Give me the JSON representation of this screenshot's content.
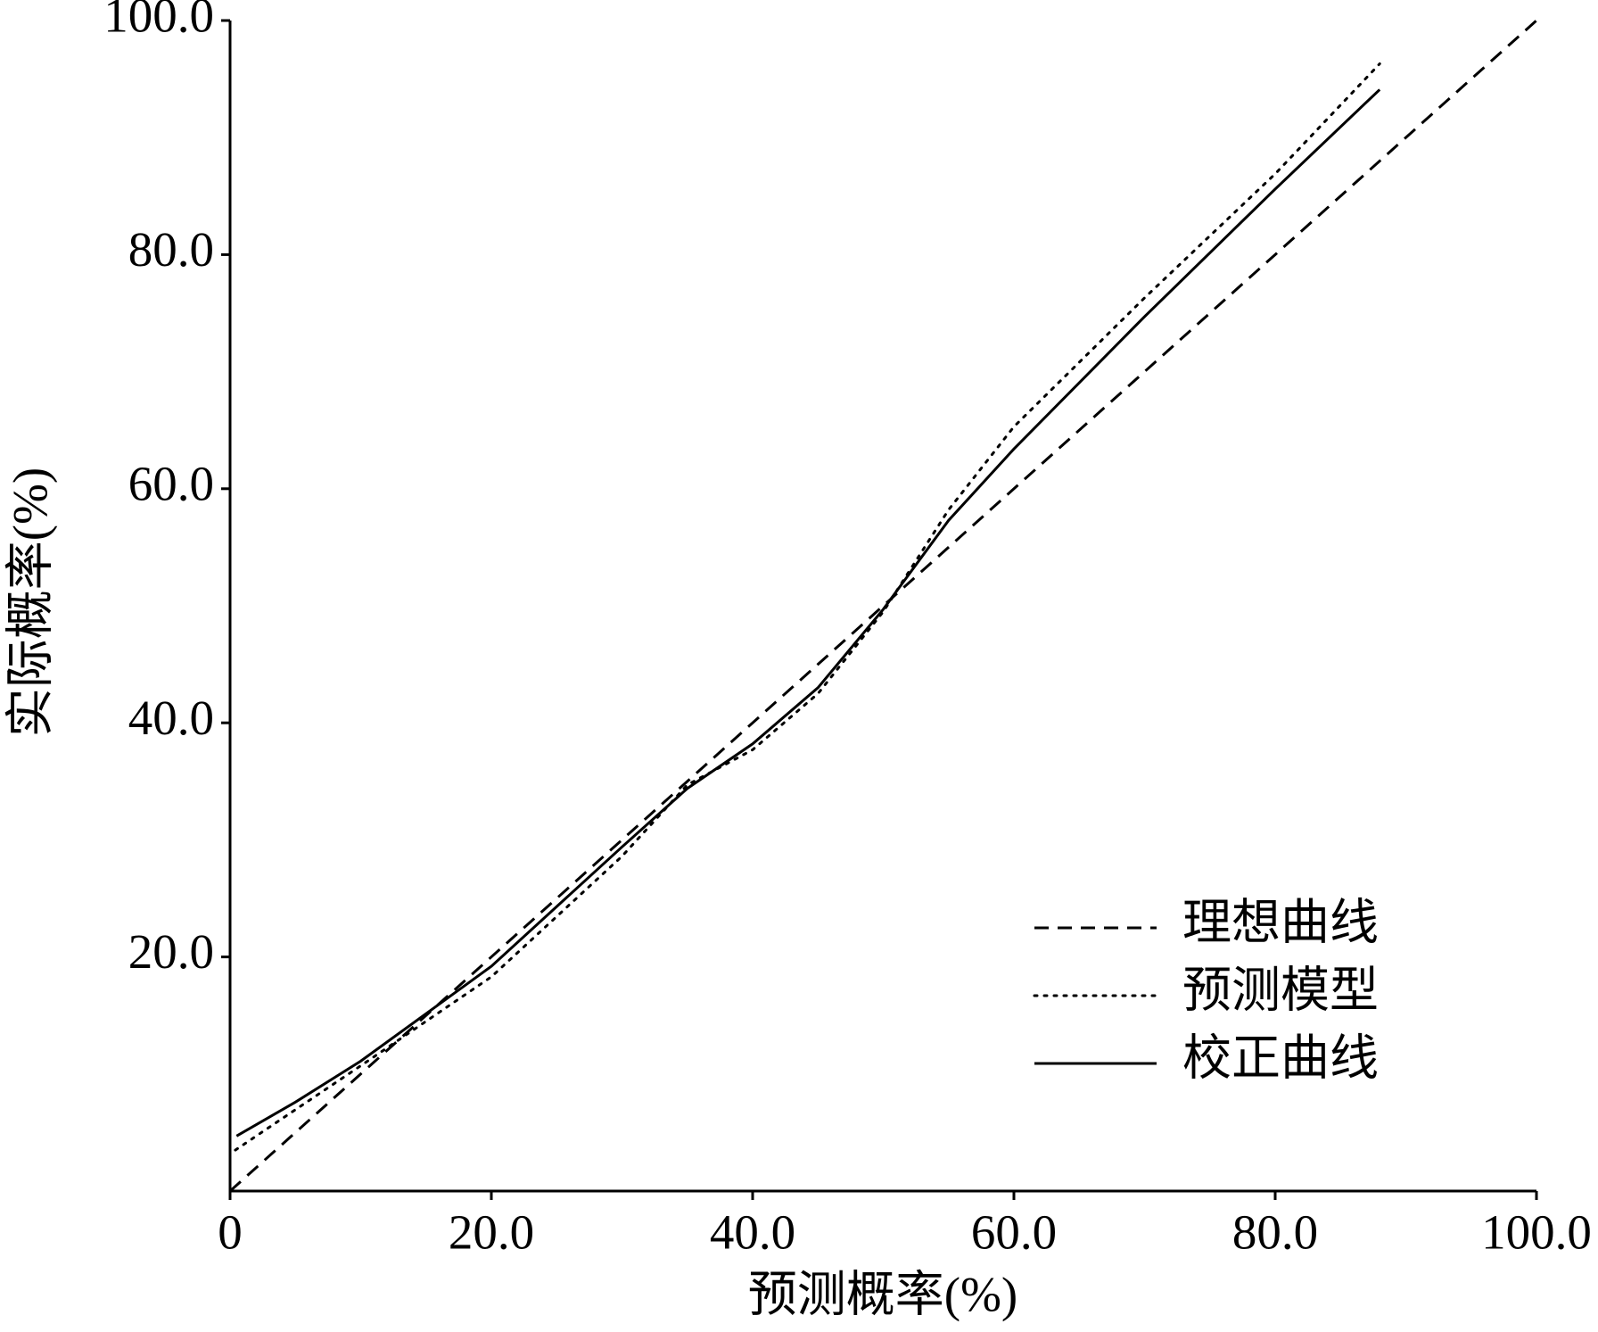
{
  "chart_data": {
    "type": "line",
    "xlabel": "预测概率(%)",
    "ylabel": "实际概率(%)",
    "xlim": [
      0,
      100
    ],
    "ylim": [
      0,
      100
    ],
    "xticks": [
      0,
      {
        "value": 20,
        "label": "20.0"
      },
      {
        "value": 40,
        "label": "40.0"
      },
      {
        "value": 60,
        "label": "60.0"
      },
      {
        "value": 80,
        "label": "80.0"
      },
      {
        "value": 100,
        "label": "100.0"
      }
    ],
    "yticks": [
      {
        "value": 20,
        "label": "20.0"
      },
      {
        "value": 40,
        "label": "40.0"
      },
      {
        "value": 60,
        "label": "60.0"
      },
      {
        "value": 80,
        "label": "80.0"
      },
      {
        "value": 100,
        "label": "100.0"
      }
    ],
    "legend": "lower right",
    "series": [
      {
        "name": "理想曲线",
        "color": "#000000",
        "dash": "dashed",
        "x": [
          0,
          100
        ],
        "values": [
          0,
          100
        ]
      },
      {
        "name": "预测模型",
        "color": "#000000",
        "dash": "dotted",
        "x": [
          0.4,
          10,
          20,
          30,
          35,
          40,
          45,
          50,
          55,
          60,
          70,
          80,
          88
        ],
        "values": [
          3.5,
          10.7,
          18.3,
          28.6,
          34.7,
          37.7,
          42.5,
          49.5,
          58.2,
          65.3,
          76.3,
          86.9,
          96.3
        ]
      },
      {
        "name": "校正曲线",
        "color": "#000000",
        "dash": "solid",
        "x": [
          0.5,
          5,
          10,
          20,
          30,
          35,
          40,
          45,
          50,
          55,
          60,
          70,
          80,
          88
        ],
        "values": [
          4.7,
          7.6,
          11.1,
          19.2,
          29.4,
          34.4,
          38.2,
          43,
          49.7,
          57.3,
          63.4,
          74.7,
          85.6,
          94.1
        ]
      }
    ]
  }
}
